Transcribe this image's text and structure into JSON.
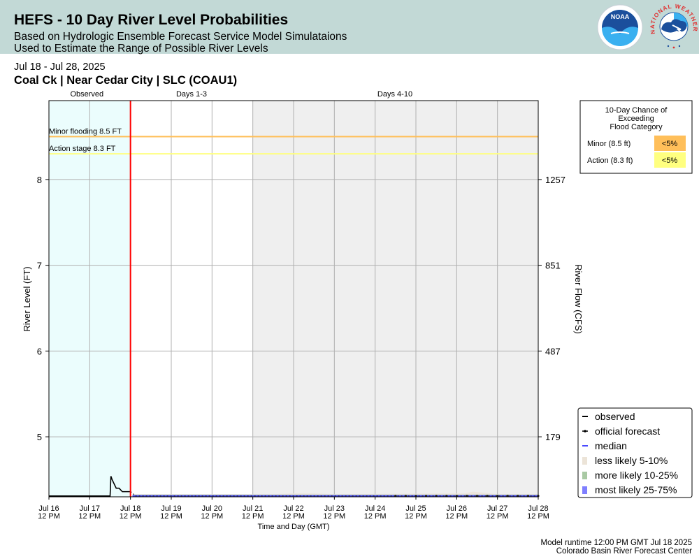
{
  "header": {
    "title": "HEFS - 10 Day River Level Probabilities",
    "subtitle1": "Based on Hydrologic Ensemble Forecast Service Model Simulataions",
    "subtitle2": "Used to Estimate the Range of Possible River Levels",
    "noaa_logo_text": "NOAA",
    "nws_logo_text": "NATIONAL WEATHER SERVICE"
  },
  "date_range": "Jul 18 - Jul 28, 2025",
  "location": "Coal Ck | Near Cedar City | SLC (COAU1)",
  "footer": {
    "runtime": "Model runtime 12:00 PM GMT Jul 18 2025",
    "center": "Colorado Basin River Forecast Center"
  },
  "colors": {
    "observed_bg": "#ebfdfd",
    "days4_10_bg": "#efefef",
    "minor_line": "#ffbf5a",
    "action_line": "#ffff80",
    "forecast_start_line": "#ff0000",
    "observed": "#000000",
    "median": "#4a4aff",
    "less_likely": "#ece4d8",
    "more_likely": "#a9c9a4",
    "most_likely": "#7f7fff"
  },
  "chart_data": {
    "type": "line",
    "section_labels": [
      "Observed",
      "Days 1-3",
      "Days 4-10"
    ],
    "x_tick_labels": [
      [
        "Jul 16",
        "12 PM"
      ],
      [
        "Jul 17",
        "12 PM"
      ],
      [
        "Jul 18",
        "12 PM"
      ],
      [
        "Jul 19",
        "12 PM"
      ],
      [
        "Jul 20",
        "12 PM"
      ],
      [
        "Jul 21",
        "12 PM"
      ],
      [
        "Jul 22",
        "12 PM"
      ],
      [
        "Jul 23",
        "12 PM"
      ],
      [
        "Jul 24",
        "12 PM"
      ],
      [
        "Jul 25",
        "12 PM"
      ],
      [
        "Jul 26",
        "12 PM"
      ],
      [
        "Jul 27",
        "12 PM"
      ],
      [
        "Jul 28",
        "12 PM"
      ]
    ],
    "xlabel": "Time and Day (GMT)",
    "ylabel": "River Level (FT)",
    "y2label": "River Flow (CFS)",
    "ylim": [
      4.3,
      8.92
    ],
    "y_ticks": [
      5,
      6,
      7,
      8
    ],
    "y2_ticks": [
      {
        "level": 5,
        "label": "179"
      },
      {
        "level": 6,
        "label": "487"
      },
      {
        "level": 7,
        "label": "851"
      },
      {
        "level": 8,
        "label": "1257"
      }
    ],
    "x_range_days": [
      0,
      12
    ],
    "observed_end_day": 2,
    "days4_10_start_day": 5,
    "thresholds": [
      {
        "name": "Minor flooding",
        "value": 8.5,
        "label": "Minor flooding 8.5 FT"
      },
      {
        "name": "Action stage",
        "value": 8.3,
        "label": "Action stage 8.3 FT"
      }
    ],
    "observed_series": {
      "name": "observed",
      "x_days": [
        0,
        0.25,
        0.5,
        0.75,
        1.0,
        1.25,
        1.5,
        1.52,
        1.55,
        1.65,
        1.72,
        1.8,
        1.9,
        2.0
      ],
      "y": [
        4.31,
        4.31,
        4.31,
        4.31,
        4.31,
        4.31,
        4.31,
        4.54,
        4.5,
        4.4,
        4.4,
        4.36,
        4.36,
        4.36
      ]
    },
    "official_forecast": {
      "name": "official forecast",
      "x_days": [
        2.0,
        2.05,
        2.1,
        2.5,
        3,
        3.5,
        4,
        4.5,
        5,
        5.5,
        6,
        6.5,
        7,
        7.5,
        8,
        8.5,
        8.75,
        9,
        9.25,
        9.5,
        9.75,
        10,
        10.25,
        10.5,
        10.75,
        11,
        11.25,
        11.5,
        11.75,
        12
      ],
      "y": [
        4.36,
        4.35,
        4.31,
        4.31,
        4.31,
        4.31,
        4.31,
        4.31,
        4.31,
        4.31,
        4.31,
        4.31,
        4.31,
        4.31,
        4.31,
        4.31,
        4.31,
        4.31,
        4.31,
        4.31,
        4.31,
        4.31,
        4.31,
        4.31,
        4.31,
        4.31,
        4.31,
        4.31,
        4.31,
        4.31
      ]
    },
    "median": {
      "name": "median",
      "x_days": [
        2.05,
        12
      ],
      "y": [
        4.31,
        4.31
      ]
    },
    "bands": [
      {
        "name": "less likely 5-10%",
        "x_days": [
          2.05,
          5.5,
          6,
          6.5,
          7,
          10.2,
          10.4,
          10.6,
          11,
          12
        ],
        "low": [
          4.3,
          4.3,
          4.3,
          4.3,
          4.3,
          4.3,
          4.3,
          4.3,
          4.3,
          4.3
        ],
        "high": [
          4.33,
          4.33,
          4.34,
          4.34,
          4.33,
          4.34,
          4.36,
          4.35,
          4.33,
          4.33
        ]
      },
      {
        "name": "more likely 10-25%",
        "x_days": [
          2.05,
          12
        ],
        "low": [
          4.3,
          4.3
        ],
        "high": [
          4.325,
          4.325
        ]
      },
      {
        "name": "most likely 25-75%",
        "x_days": [
          2.05,
          12
        ],
        "low": [
          4.305,
          4.305
        ],
        "high": [
          4.32,
          4.32
        ]
      }
    ],
    "legend": {
      "placement": "bottom-right",
      "entries": [
        "observed",
        "official forecast",
        "median",
        "less likely 5-10%",
        "more likely 10-25%",
        "most likely 25-75%"
      ]
    },
    "exceed_table": {
      "title_lines": [
        "10-Day Chance of",
        "Exceeding",
        "Flood Category"
      ],
      "rows": [
        {
          "label": "Minor (8.5 ft)",
          "value": "<5%",
          "color": "#ffbf5a"
        },
        {
          "label": "Action (8.3 ft)",
          "value": "<5%",
          "color": "#ffff80"
        }
      ]
    }
  }
}
